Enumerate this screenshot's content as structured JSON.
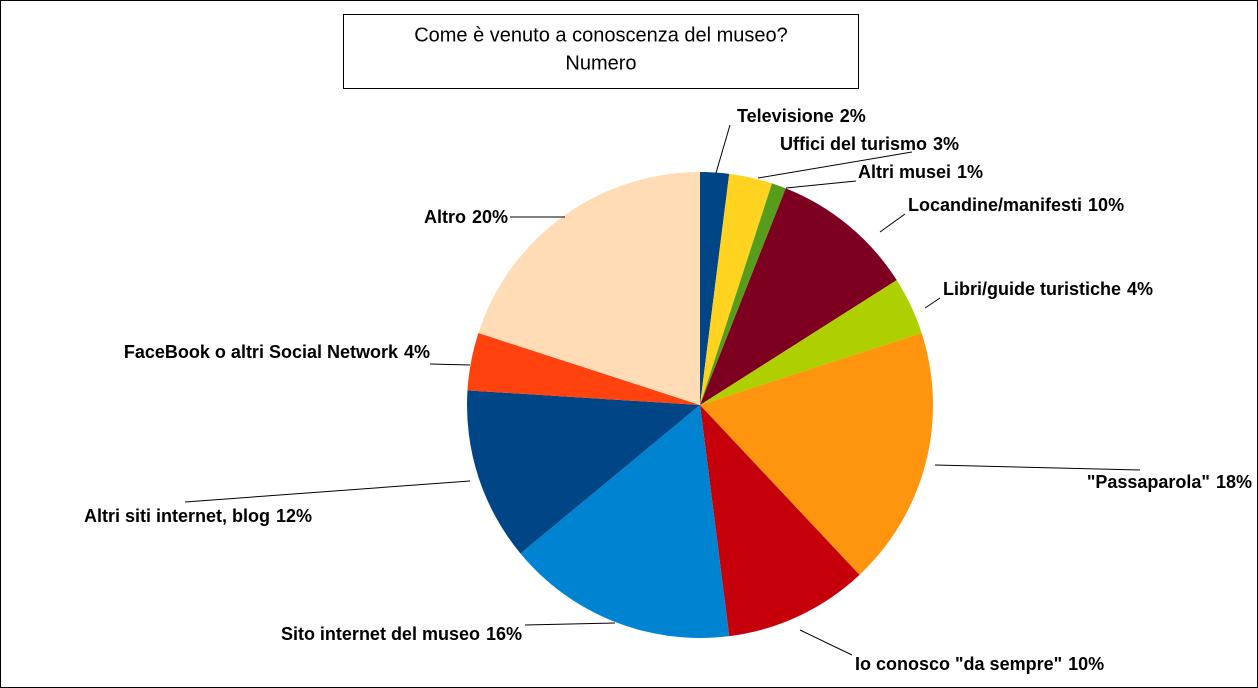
{
  "chart_data": {
    "type": "pie",
    "title": "Come è venuto a conoscenza del museo?",
    "subtitle": "Numero",
    "categories": [
      "Televisione",
      "Uffici del turismo",
      "Altri musei",
      "Locandine/manifesti",
      "Libri/guide turistiche",
      "\"Passaparola\"",
      "Io conosco \"da sempre\"",
      "Sito internet del museo",
      "Altri siti internet, blog",
      "FaceBook o altri Social Network",
      "Altro"
    ],
    "values": [
      2,
      3,
      1,
      10,
      4,
      18,
      10,
      16,
      12,
      4,
      20
    ],
    "value_labels": [
      "2%",
      "3%",
      "1%",
      "10%",
      "4%",
      "18%",
      "10%",
      "16%",
      "12%",
      "4%",
      "20%"
    ],
    "colors": [
      "#004586",
      "#ffd320",
      "#579d1c",
      "#7e0021",
      "#aecf00",
      "#ff950e",
      "#c5000b",
      "#0084d1",
      "#004586",
      "#ff420e",
      "#ffdcb6"
    ]
  }
}
